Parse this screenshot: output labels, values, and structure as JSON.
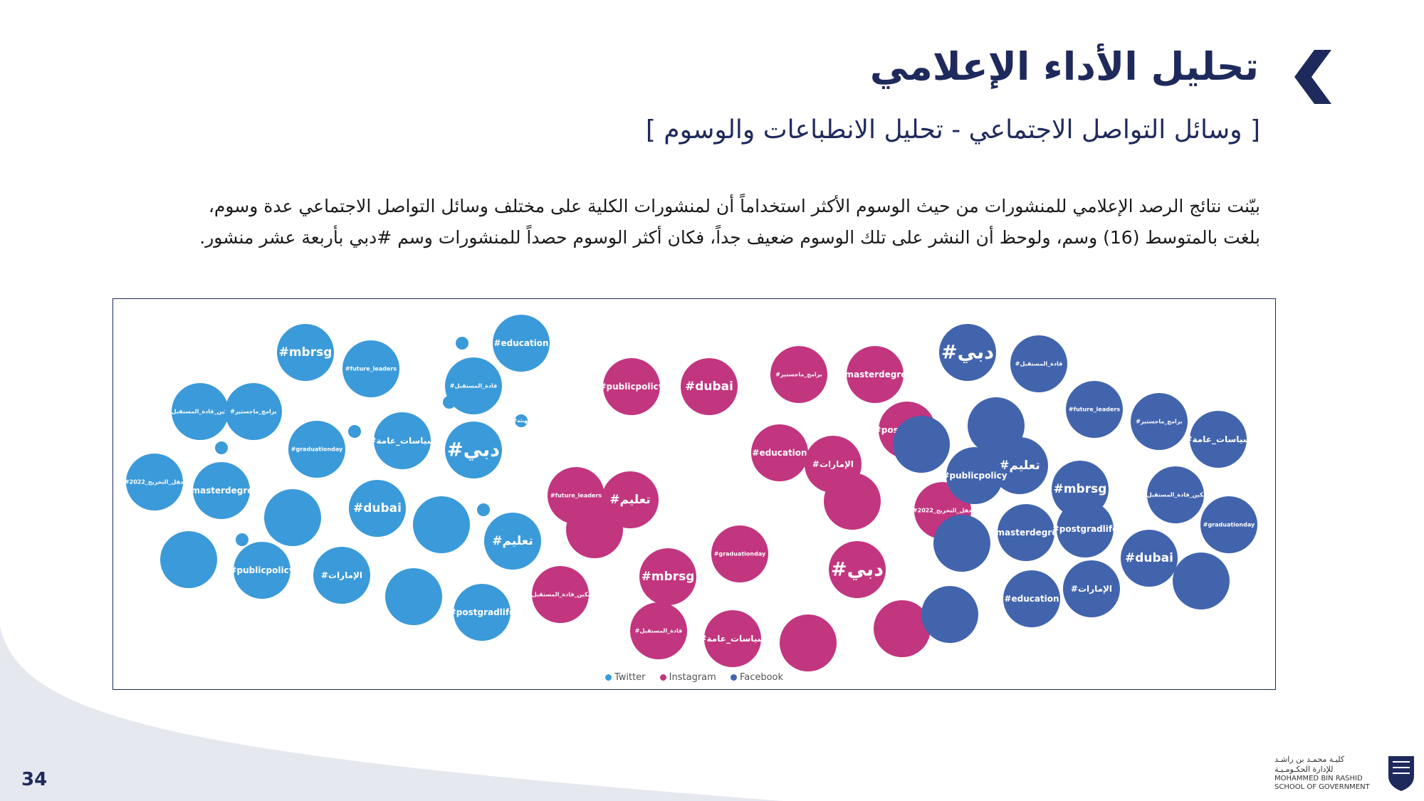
{
  "page": {
    "title": "تحليل الأداء الإعلامي",
    "subtitle": "[ وسائل التواصل الاجتماعي - تحليل الانطباعات  والوسوم ]",
    "paragraph_line1": "بيّنت نتائج الرصد الإعلامي للمنشورات من حيث الوسوم الأكثر استخداماً أن لمنشورات الكلية على مختلف وسائل التواصل الاجتماعي عدة وسوم،",
    "paragraph_line2": "بلغت بالمتوسط (16) وسم، ولوحظ أن النشر على تلك الوسوم ضعيف جداً، فكان أكثر الوسوم  حصداً للمنشورات وسم #دبي بأربعة عشر منشور.",
    "page_number": "34",
    "logo_ar_line1": "كليـة محمـد بن راشـد",
    "logo_ar_line2": "للإدارة الحكـومـيـة",
    "logo_en_line1": "MOHAMMED BIN RASHID",
    "logo_en_line2": "SCHOOL OF GOVERNMENT"
  },
  "colors": {
    "navy": "#1f2a5c",
    "twitter": "#3b9ad9",
    "instagram": "#c2357f",
    "facebook": "#4264ad"
  },
  "chart_data": {
    "type": "packed-bubble",
    "legend": [
      "Twitter",
      "Instagram",
      "Facebook"
    ],
    "series": [
      {
        "name": "Twitter",
        "color": "#3b9ad9",
        "bubbles": [
          {
            "label": "#mbrsg",
            "size": 3
          },
          {
            "label": "#future_leaders",
            "size": 3
          },
          {
            "label": "#education",
            "size": 3
          },
          {
            "label": "#قادة_المستقبل",
            "size": 3
          },
          {
            "label": "#تمكين_قادة_المستقبل",
            "size": 3
          },
          {
            "label": "#برامج_ماجستير",
            "size": 3
          },
          {
            "label": "#graduationday",
            "size": 3
          },
          {
            "label": "#سياسات_عامة",
            "size": 3
          },
          {
            "label": "#دبي",
            "size": 3
          },
          {
            "label": "#تهنئة",
            "size": 1
          },
          {
            "label": "#حفل_التخريج_2022",
            "size": 3
          },
          {
            "label": "#masterdegree",
            "size": 3
          },
          {
            "label": "#dubai",
            "size": 3
          },
          {
            "label": "#تعليم",
            "size": 3
          },
          {
            "label": "#publicpolicy",
            "size": 3
          },
          {
            "label": "#الإمارات",
            "size": 3
          },
          {
            "label": "#postgradlife",
            "size": 3
          },
          {
            "label": "",
            "size": 3
          },
          {
            "label": "",
            "size": 3
          },
          {
            "label": "",
            "size": 3
          },
          {
            "label": "",
            "size": 3
          },
          {
            "label": "",
            "size": 1
          },
          {
            "label": "",
            "size": 1
          },
          {
            "label": "",
            "size": 1
          },
          {
            "label": "",
            "size": 1
          },
          {
            "label": "",
            "size": 1
          },
          {
            "label": "",
            "size": 1
          }
        ]
      },
      {
        "name": "Instagram",
        "color": "#c2357f",
        "bubbles": [
          {
            "label": "#publicpolicy",
            "size": 3
          },
          {
            "label": "#dubai",
            "size": 3
          },
          {
            "label": "#برامج_ماجستير",
            "size": 3
          },
          {
            "label": "#masterdegree",
            "size": 3
          },
          {
            "label": "#postgradlife",
            "size": 3
          },
          {
            "label": "#education",
            "size": 3
          },
          {
            "label": "#الإمارات",
            "size": 3
          },
          {
            "label": "#future_leaders",
            "size": 3
          },
          {
            "label": "#تعليم",
            "size": 3
          },
          {
            "label": "#حفل_التخريج_2022",
            "size": 3
          },
          {
            "label": "#mbrsg",
            "size": 3
          },
          {
            "label": "#graduationday",
            "size": 3
          },
          {
            "label": "#دبي",
            "size": 3
          },
          {
            "label": "#تمكين_قادة_المستقبل",
            "size": 3
          },
          {
            "label": "#قادة_المستقبل",
            "size": 3
          },
          {
            "label": "#سياسات_عامة",
            "size": 3
          },
          {
            "label": "",
            "size": 3
          },
          {
            "label": "",
            "size": 3
          },
          {
            "label": "",
            "size": 3
          },
          {
            "label": "",
            "size": 3
          }
        ]
      },
      {
        "name": "Facebook",
        "color": "#4264ad",
        "bubbles": [
          {
            "label": "#دبي",
            "size": 3
          },
          {
            "label": "#قادة_المستقبل",
            "size": 3
          },
          {
            "label": "#future_leaders",
            "size": 3
          },
          {
            "label": "#برامج_ماجستير",
            "size": 3
          },
          {
            "label": "#سياسات_عامة",
            "size": 3
          },
          {
            "label": "#تعليم",
            "size": 3
          },
          {
            "label": "#publicpolicy",
            "size": 3
          },
          {
            "label": "#mbrsg",
            "size": 3
          },
          {
            "label": "#تمكين_قادة_المستقبل",
            "size": 3
          },
          {
            "label": "#graduationday",
            "size": 3
          },
          {
            "label": "#masterdegree",
            "size": 3
          },
          {
            "label": "#postgradlife",
            "size": 3
          },
          {
            "label": "#dubai",
            "size": 3
          },
          {
            "label": "#education",
            "size": 3
          },
          {
            "label": "#الإمارات",
            "size": 3
          },
          {
            "label": "",
            "size": 3
          },
          {
            "label": "",
            "size": 3
          },
          {
            "label": "",
            "size": 3
          },
          {
            "label": "",
            "size": 3
          },
          {
            "label": "",
            "size": 3
          }
        ]
      }
    ]
  }
}
